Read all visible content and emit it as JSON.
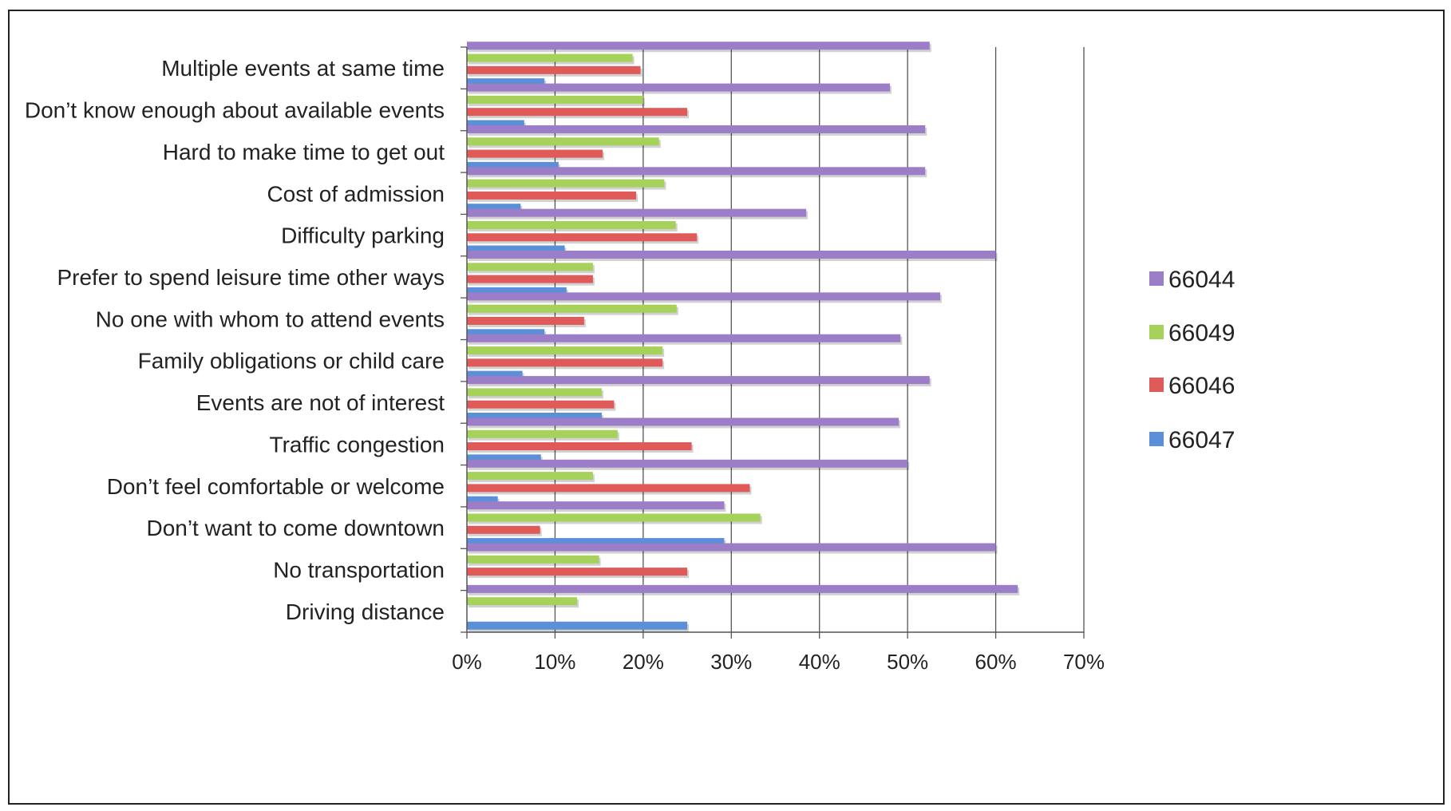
{
  "chart_data": {
    "type": "bar",
    "orientation": "horizontal",
    "title": "",
    "xlabel": "",
    "ylabel": "",
    "xlim": [
      0,
      70
    ],
    "x_ticks": [
      "0%",
      "10%",
      "20%",
      "30%",
      "40%",
      "50%",
      "60%",
      "70%"
    ],
    "grid": "vertical",
    "legend_position": "right",
    "categories": [
      "Multiple events at same time",
      "Don’t know enough about available events",
      "Hard to make time to get out",
      "Cost of admission",
      "Difficulty parking",
      "Prefer to spend leisure time other ways",
      "No one with whom to attend events",
      "Family obligations or child care",
      "Events are not of interest",
      "Traffic congestion",
      "Don’t feel comfortable or welcome",
      "Don’t want to come downtown",
      "No transportation",
      "Driving distance"
    ],
    "series": [
      {
        "name": "66044",
        "color": "#9b7dc8",
        "values": [
          52.5,
          48,
          52,
          52,
          38.5,
          60,
          53.7,
          49.2,
          52.5,
          49,
          50,
          29.2,
          60,
          62.5
        ]
      },
      {
        "name": "66049",
        "color": "#a6d25c",
        "values": [
          18.8,
          20,
          21.8,
          22.4,
          23.7,
          14.3,
          23.8,
          22.2,
          15.3,
          17.1,
          14.3,
          33.3,
          15,
          12.5
        ]
      },
      {
        "name": "66046",
        "color": "#e05a5a",
        "values": [
          19.7,
          25,
          15.4,
          19.2,
          26.1,
          14.3,
          13.3,
          22.2,
          16.7,
          25.5,
          32.1,
          8.3,
          25,
          0
        ]
      },
      {
        "name": "66047",
        "color": "#5b8fd8",
        "values": [
          8.8,
          6.5,
          10.4,
          6.1,
          11.1,
          11.3,
          8.8,
          6.3,
          15.3,
          8.4,
          3.5,
          29.2,
          0,
          25
        ]
      }
    ]
  }
}
